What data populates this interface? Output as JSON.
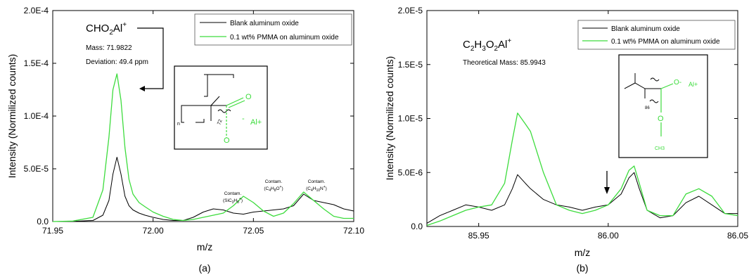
{
  "colors": {
    "blank": "#000000",
    "pmma": "#3ddc3d",
    "axis": "#000000",
    "box": "#000000"
  },
  "chart_data": [
    {
      "type": "line",
      "panel_label": "(a)",
      "xlabel": "m/z",
      "ylabel": "Intensity (Normilized counts)",
      "xlim": [
        71.95,
        72.1
      ],
      "ylim": [
        0,
        0.0002
      ],
      "xticks": [
        71.95,
        72.0,
        72.05,
        72.1
      ],
      "xtick_labels": [
        "71.95",
        "72.00",
        "72.05",
        "72.10"
      ],
      "yticks": [
        0,
        5e-05,
        0.0001,
        0.00015,
        0.0002
      ],
      "ytick_labels": [
        "0.0",
        "5.0E-5",
        "1.0E-4",
        "1.5E-4",
        "2.0E-4"
      ],
      "legend": [
        "Blank aluminum oxide",
        "0.1 wt% PMMA on aluminum oxide"
      ],
      "legend_position": "top-right",
      "annotation": {
        "formula": "CHO2Al+",
        "mass": "Mass: 71.9822",
        "deviation": "Deviation: 49.4 ppm"
      },
      "contam_labels": [
        {
          "line1": "Contam.",
          "line2": "(SiC3H8+)"
        },
        {
          "line1": "Contam.",
          "line2": "(C4H8O+)"
        },
        {
          "line1": "Contam.",
          "line2": "(C4H10N+)"
        }
      ],
      "structure": {
        "subscript_n": "n",
        "subscript_72": "72",
        "anion": "-",
        "cation": "Al+",
        "atom": "O"
      },
      "series": [
        {
          "name": "Blank aluminum oxide",
          "x": [
            71.95,
            71.96,
            71.97,
            71.975,
            71.978,
            71.98,
            71.982,
            71.984,
            71.986,
            71.988,
            71.99,
            71.993,
            71.996,
            72.0,
            72.005,
            72.01,
            72.015,
            72.02,
            72.025,
            72.03,
            72.035,
            72.04,
            72.045,
            72.05,
            72.055,
            72.06,
            72.065,
            72.07,
            72.075,
            72.08,
            72.085,
            72.09,
            72.095,
            72.1
          ],
          "y": [
            0,
            2e-07,
            1e-06,
            6e-06,
            2e-05,
            4.5e-05,
            6.1e-05,
            4.5e-05,
            2.4e-05,
            1.5e-05,
            1.1e-05,
            8e-06,
            6e-06,
            4e-06,
            2e-06,
            1e-06,
            1e-06,
            4e-06,
            9e-06,
            1.2e-05,
            1.1e-05,
            8e-06,
            7e-06,
            9e-06,
            1e-05,
            1.1e-05,
            1.2e-05,
            1.5e-05,
            2.6e-05,
            2e-05,
            1.8e-05,
            1.6e-05,
            1.2e-05,
            1e-05
          ]
        },
        {
          "name": "0.1 wt% PMMA on aluminum oxide",
          "x": [
            71.95,
            71.96,
            71.97,
            71.975,
            71.978,
            71.98,
            71.982,
            71.984,
            71.986,
            71.988,
            71.99,
            71.993,
            71.996,
            72.0,
            72.005,
            72.01,
            72.015,
            72.02,
            72.025,
            72.03,
            72.035,
            72.04,
            72.045,
            72.05,
            72.055,
            72.06,
            72.065,
            72.07,
            72.075,
            72.08,
            72.085,
            72.09,
            72.095,
            72.1
          ],
          "y": [
            0,
            5e-07,
            4e-06,
            3e-05,
            8e-05,
            0.000125,
            0.00014,
            0.000115,
            7e-05,
            4e-05,
            2.6e-05,
            1.8e-05,
            1.4e-05,
            9e-06,
            5e-06,
            2e-06,
            1e-06,
            2e-06,
            4e-06,
            6e-06,
            8e-06,
            1.5e-05,
            2.4e-05,
            1.8e-05,
            1e-05,
            5e-06,
            8e-06,
            1.7e-05,
            2.8e-05,
            2e-05,
            1.2e-05,
            5e-06,
            3e-06,
            3e-06
          ]
        }
      ]
    },
    {
      "type": "line",
      "panel_label": "(b)",
      "xlabel": "m/z",
      "ylabel": "Intensity (Normilized counts)",
      "xlim": [
        85.93,
        86.05
      ],
      "ylim": [
        0,
        2e-05
      ],
      "xticks": [
        85.95,
        86.0,
        86.05
      ],
      "xtick_labels": [
        "85.95",
        "86.00",
        "86.05"
      ],
      "yticks": [
        0,
        5e-06,
        1e-05,
        1.5e-05,
        2e-05
      ],
      "ytick_labels": [
        "0.0",
        "5.0E-6",
        "1.0E-5",
        "1.5E-5",
        "2.0E-5"
      ],
      "legend": [
        "Blank aluminum oxide",
        "0.1 wt% PMMA on aluminum oxide"
      ],
      "legend_position": "top-right",
      "annotation": {
        "formula": "C2H3O2Al+",
        "mass": "Theoretical Mass: 85.9943"
      },
      "structure": {
        "subscript_86": "86",
        "anion": "O-",
        "cation": "Al+",
        "atom": "O",
        "methyl": "CH3"
      },
      "series": [
        {
          "name": "Blank aluminum oxide",
          "x": [
            85.93,
            85.935,
            85.94,
            85.945,
            85.95,
            85.955,
            85.96,
            85.963,
            85.965,
            85.968,
            85.97,
            85.975,
            85.98,
            85.985,
            85.99,
            85.995,
            86.0,
            86.005,
            86.008,
            86.01,
            86.012,
            86.015,
            86.02,
            86.025,
            86.03,
            86.035,
            86.04,
            86.045,
            86.05
          ],
          "y": [
            3e-07,
            1e-06,
            1.5e-06,
            2e-06,
            1.8e-06,
            1.5e-06,
            2e-06,
            3.5e-06,
            4.8e-06,
            4e-06,
            3.5e-06,
            2.5e-06,
            2e-06,
            1.8e-06,
            1.5e-06,
            1.8e-06,
            2e-06,
            3e-06,
            4.5e-06,
            5e-06,
            3.5e-06,
            1.5e-06,
            8e-07,
            1e-06,
            2.2e-06,
            2.8e-06,
            2e-06,
            1.2e-06,
            1.2e-06
          ]
        },
        {
          "name": "0.1 wt% PMMA on aluminum oxide",
          "x": [
            85.93,
            85.935,
            85.94,
            85.945,
            85.95,
            85.955,
            85.96,
            85.963,
            85.965,
            85.968,
            85.97,
            85.975,
            85.98,
            85.985,
            85.99,
            85.995,
            86.0,
            86.005,
            86.008,
            86.01,
            86.012,
            86.015,
            86.02,
            86.025,
            86.03,
            86.035,
            86.04,
            86.045,
            86.05
          ],
          "y": [
            1e-07,
            5e-07,
            1e-06,
            1.5e-06,
            1.8e-06,
            2e-06,
            4e-06,
            8e-06,
            1.05e-05,
            9.5e-06,
            8.8e-06,
            5e-06,
            2e-06,
            1.5e-06,
            1.2e-06,
            1.5e-06,
            2e-06,
            3.5e-06,
            5.2e-06,
            5.6e-06,
            4e-06,
            1.5e-06,
            1e-06,
            1e-06,
            3e-06,
            3.5e-06,
            2.8e-06,
            1.2e-06,
            1e-06
          ]
        }
      ]
    }
  ]
}
